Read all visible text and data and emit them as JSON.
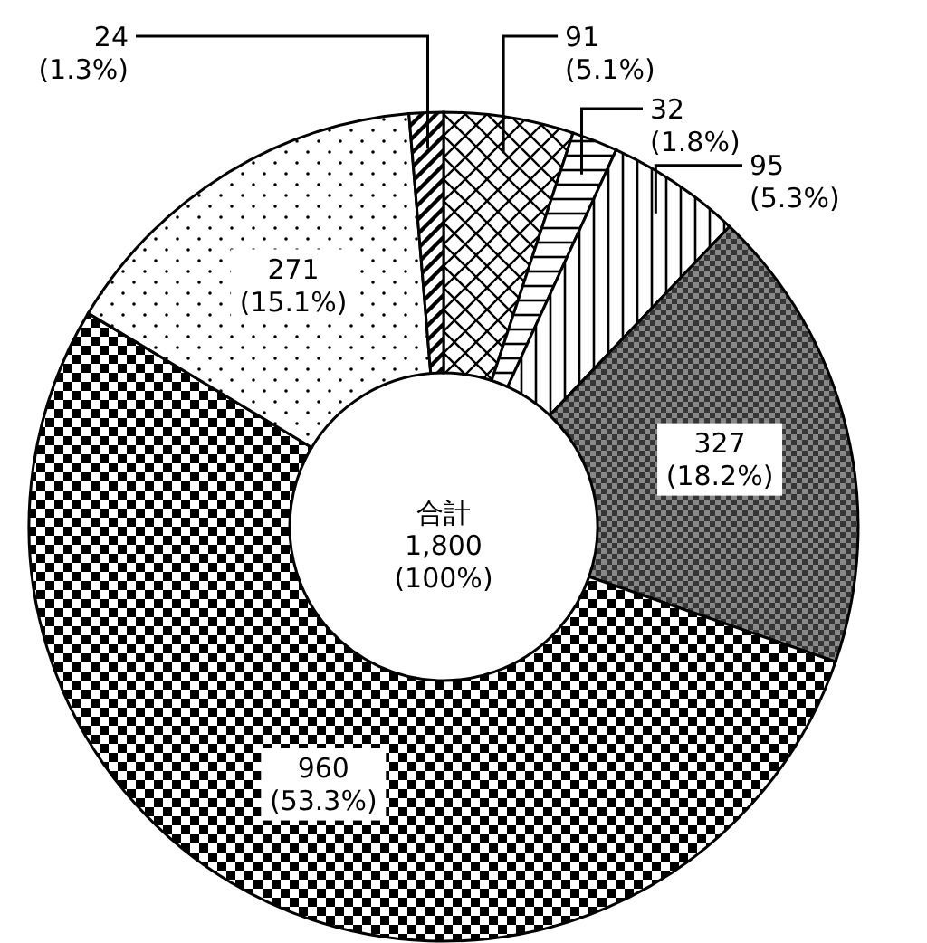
{
  "chart_data": {
    "type": "donut",
    "categories": [
      null,
      null,
      null,
      null,
      null,
      null,
      null
    ],
    "values": [
      91,
      32,
      95,
      327,
      960,
      271,
      24
    ],
    "colors": [
      "#000000",
      "#000000",
      "#000000",
      "#000000",
      "#000000",
      "#000000",
      "#000000"
    ],
    "value_labels": [
      "91\n(5.1%)",
      "32\n(1.8%)",
      "95\n(5.3%)",
      "327\n(18.2%)",
      "960\n(53.3%)",
      "271\n(15.1%)",
      "24\n(1.3%)"
    ],
    "annotations": [
      "合計\n1,800\n(100%)"
    ]
  }
}
